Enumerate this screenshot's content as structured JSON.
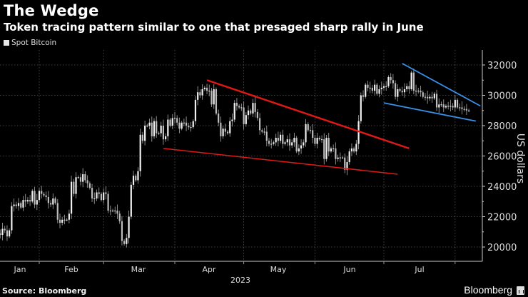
{
  "header": {
    "title": "The Wedge",
    "subtitle": "Token tracing pattern similar to one that presaged sharp rally in June"
  },
  "footer": {
    "source": "Source: Bloomberg",
    "brand": "Bloomberg"
  },
  "colors": {
    "background": "#000000",
    "candles": "#d9d9d9",
    "wedge_june": "#e01818",
    "wedge_current": "#3a8fe8",
    "grid": "#555555"
  },
  "chart_data": {
    "type": "candlestick",
    "title": "The Wedge",
    "subtitle": "Token tracing pattern similar to one that presaged sharp rally in June",
    "legend": {
      "position": "top-left",
      "entries": [
        "Spot Bitcoin"
      ]
    },
    "series": [
      {
        "name": "Spot Bitcoin",
        "frequency": "daily",
        "x_range": [
          "2023-01-14",
          "2023-08-07"
        ],
        "close": [
          20900,
          20800,
          21200,
          21100,
          20700,
          21100,
          22700,
          22800,
          22700,
          22900,
          22600,
          23100,
          23000,
          23100,
          23000,
          23700,
          22800,
          23100,
          23700,
          23500,
          23400,
          23300,
          22900,
          22800,
          23200,
          22900,
          21800,
          21600,
          21800,
          21800,
          21800,
          22200,
          24300,
          23500,
          24600,
          24600,
          24300,
          24800,
          24400,
          24200,
          23900,
          23200,
          23200,
          23600,
          23500,
          23100,
          23600,
          23500,
          22400,
          22400,
          22400,
          22400,
          22200,
          21700,
          20400,
          20200,
          20600,
          22000,
          24100,
          24700,
          24400,
          25000,
          27400,
          27000,
          28000,
          28000,
          28200,
          27300,
          28300,
          27500,
          27500,
          28000,
          27100,
          27300,
          28400,
          28000,
          28500,
          28500,
          28200,
          27800,
          28200,
          28200,
          28000,
          27900,
          27900,
          28300,
          29700,
          30200,
          30000,
          30400,
          30500,
          30300,
          30300,
          29400,
          30400,
          28800,
          28200,
          27300,
          27800,
          27600,
          27500,
          28300,
          28400,
          29500,
          29300,
          29200,
          29200,
          28100,
          28700,
          29000,
          28800,
          29500,
          28900,
          28500,
          27700,
          27600,
          27600,
          27000,
          26800,
          26800,
          26900,
          27200,
          27000,
          27400,
          26800,
          26900,
          27100,
          26700,
          26900,
          27200,
          26300,
          26500,
          26700,
          26900,
          28100,
          27700,
          27700,
          27200,
          26800,
          27200,
          27100,
          27100,
          25800,
          27200,
          26300,
          26500,
          26500,
          25800,
          25900,
          25900,
          25900,
          25100,
          25600,
          26300,
          26500,
          26300,
          26800,
          28300,
          30000,
          29900,
          30700,
          30500,
          30500,
          30300,
          30700,
          30100,
          30400,
          30500,
          30600,
          30600,
          31200,
          31000,
          30800,
          29900,
          30400,
          30300,
          30200,
          30400,
          30600,
          30400,
          31500,
          30300,
          30300,
          30300,
          30200,
          29900,
          29900,
          29800,
          29900,
          29800,
          30100,
          29200,
          29400,
          29400,
          29200,
          29300,
          29300,
          29300,
          29200,
          29700,
          29200,
          29200,
          29100,
          29100,
          29000,
          29000
        ]
      }
    ],
    "trendlines": [
      {
        "group": "june-wedge",
        "points": [
          [
            "2023-04-15",
            31000
          ],
          [
            "2023-07-12",
            26500
          ]
        ],
        "color": "#e01818",
        "weight": "thick"
      },
      {
        "group": "june-wedge",
        "points": [
          [
            "2023-03-27",
            26500
          ],
          [
            "2023-07-07",
            24800
          ]
        ],
        "color": "#e01818",
        "weight": "thin"
      },
      {
        "group": "current-wedge",
        "points": [
          [
            "2023-07-09",
            32100
          ],
          [
            "2023-08-12",
            29300
          ]
        ],
        "color": "#3a8fe8",
        "weight": "medium"
      },
      {
        "group": "current-wedge",
        "points": [
          [
            "2023-07-01",
            29500
          ],
          [
            "2023-08-10",
            28300
          ]
        ],
        "color": "#3a8fe8",
        "weight": "medium"
      }
    ],
    "xlabel": "2023",
    "x_ticks": [
      "Jan",
      "Feb",
      "Mar",
      "Apr",
      "May",
      "Jun",
      "Jul"
    ],
    "ylabel": "US dollars",
    "y_ticks": [
      20000,
      22000,
      24000,
      26000,
      28000,
      30000,
      32000
    ],
    "y_tick_labels": [
      "20000",
      "22000",
      "24000",
      "26000",
      "28000",
      "30000",
      "32000"
    ],
    "ylim": [
      19500,
      32800
    ],
    "y_axis_side": "right",
    "grid": true
  }
}
